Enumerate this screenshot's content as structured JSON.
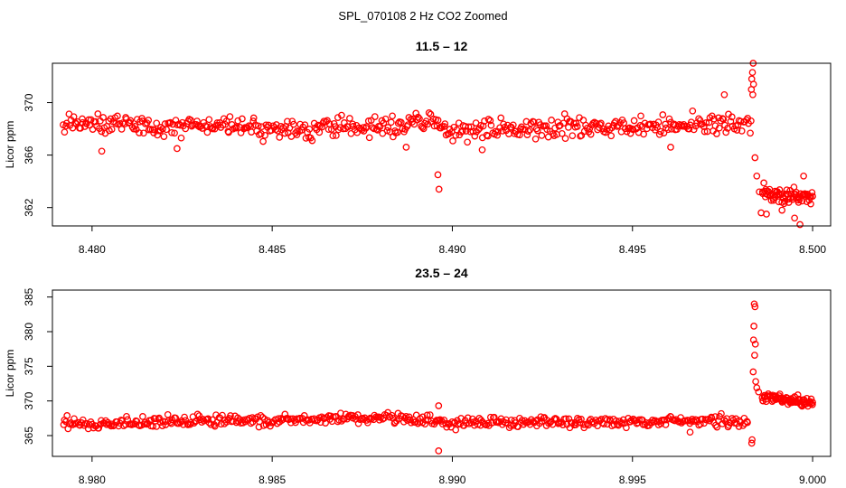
{
  "figure": {
    "title": "SPL_070108  2 Hz CO2 Zoomed"
  },
  "chart_data": [
    {
      "type": "scatter",
      "title": "11.5 – 12",
      "xlabel": "",
      "ylabel": "Licor ppm",
      "xlim": [
        8.4789,
        8.5005
      ],
      "ylim": [
        360.6,
        373.0
      ],
      "xticks": [
        8.48,
        8.485,
        8.49,
        8.495,
        8.5
      ],
      "xtick_labels": [
        "8.480",
        "8.485",
        "8.490",
        "8.495",
        "8.500"
      ],
      "yticks": [
        362,
        366,
        370
      ],
      "ytick_labels": [
        "362",
        "366",
        "370"
      ],
      "grid": false,
      "marker": "open-circle",
      "color": "#ff0000",
      "segments": [
        {
          "x_start": 8.4792,
          "x_end": 8.4983,
          "n": 520,
          "baseline": [
            [
              8.4792,
              368.5
            ],
            [
              8.485,
              368.0
            ],
            [
              8.488,
              368.2
            ],
            [
              8.4895,
              368.5
            ],
            [
              8.49,
              367.9
            ],
            [
              8.495,
              368.1
            ],
            [
              8.4983,
              368.5
            ]
          ],
          "spread": 0.75
        },
        {
          "x_start": 8.4986,
          "x_end": 8.5,
          "n": 70,
          "baseline": [
            [
              8.4986,
              363.0
            ],
            [
              8.5,
              362.7
            ]
          ],
          "spread": 0.6
        }
      ],
      "points": [
        [
          8.48027,
          366.3
        ],
        [
          8.48236,
          366.5
        ],
        [
          8.48872,
          366.6
        ],
        [
          8.49083,
          366.4
        ],
        [
          8.49606,
          366.6
        ],
        [
          8.4896,
          364.5
        ],
        [
          8.48963,
          363.4
        ],
        [
          8.49755,
          370.6
        ],
        [
          8.49835,
          373.0
        ],
        [
          8.49833,
          372.3
        ],
        [
          8.49831,
          371.8
        ],
        [
          8.49836,
          371.4
        ],
        [
          8.4983,
          371.0
        ],
        [
          8.49834,
          370.6
        ],
        [
          8.4984,
          365.8
        ],
        [
          8.49845,
          364.4
        ],
        [
          8.49852,
          363.2
        ],
        [
          8.49857,
          361.6
        ],
        [
          8.49872,
          361.5
        ],
        [
          8.49915,
          361.8
        ],
        [
          8.4995,
          361.2
        ],
        [
          8.49965,
          360.7
        ],
        [
          8.49975,
          364.4
        ]
      ]
    },
    {
      "type": "scatter",
      "title": "23.5 – 24",
      "xlabel": "",
      "ylabel": "Licor ppm",
      "xlim": [
        8.9789,
        9.0005
      ],
      "ylim": [
        362.0,
        386.0
      ],
      "xticks": [
        8.98,
        8.985,
        8.99,
        8.995,
        9.0
      ],
      "xtick_labels": [
        "8.980",
        "8.985",
        "8.990",
        "8.995",
        "9.000"
      ],
      "yticks": [
        365,
        370,
        375,
        380,
        385
      ],
      "ytick_labels": [
        "365",
        "370",
        "375",
        "380",
        "385"
      ],
      "grid": false,
      "marker": "open-circle",
      "color": "#ff0000",
      "segments": [
        {
          "x_start": 8.9792,
          "x_end": 8.9982,
          "n": 520,
          "baseline": [
            [
              8.9792,
              366.8
            ],
            [
              8.985,
              367.2
            ],
            [
              8.988,
              367.6
            ],
            [
              8.99,
              366.9
            ],
            [
              8.995,
              367.0
            ],
            [
              8.9982,
              367.2
            ]
          ],
          "spread": 0.75
        },
        {
          "x_start": 8.9986,
          "x_end": 9.0,
          "n": 80,
          "baseline": [
            [
              8.9986,
              370.6
            ],
            [
              9.0,
              369.8
            ]
          ],
          "spread": 0.6
        }
      ],
      "points": [
        [
          8.98962,
          362.8
        ],
        [
          8.98962,
          369.3
        ],
        [
          8.9966,
          365.5
        ],
        [
          8.99832,
          364.4
        ],
        [
          8.99831,
          363.9
        ],
        [
          8.99838,
          384.0
        ],
        [
          8.9984,
          383.6
        ],
        [
          8.99837,
          380.8
        ],
        [
          8.99836,
          378.8
        ],
        [
          8.99841,
          378.2
        ],
        [
          8.99839,
          376.6
        ],
        [
          8.99835,
          374.2
        ],
        [
          8.99842,
          372.8
        ],
        [
          8.99845,
          371.9
        ],
        [
          8.9985,
          371.3
        ]
      ]
    }
  ]
}
